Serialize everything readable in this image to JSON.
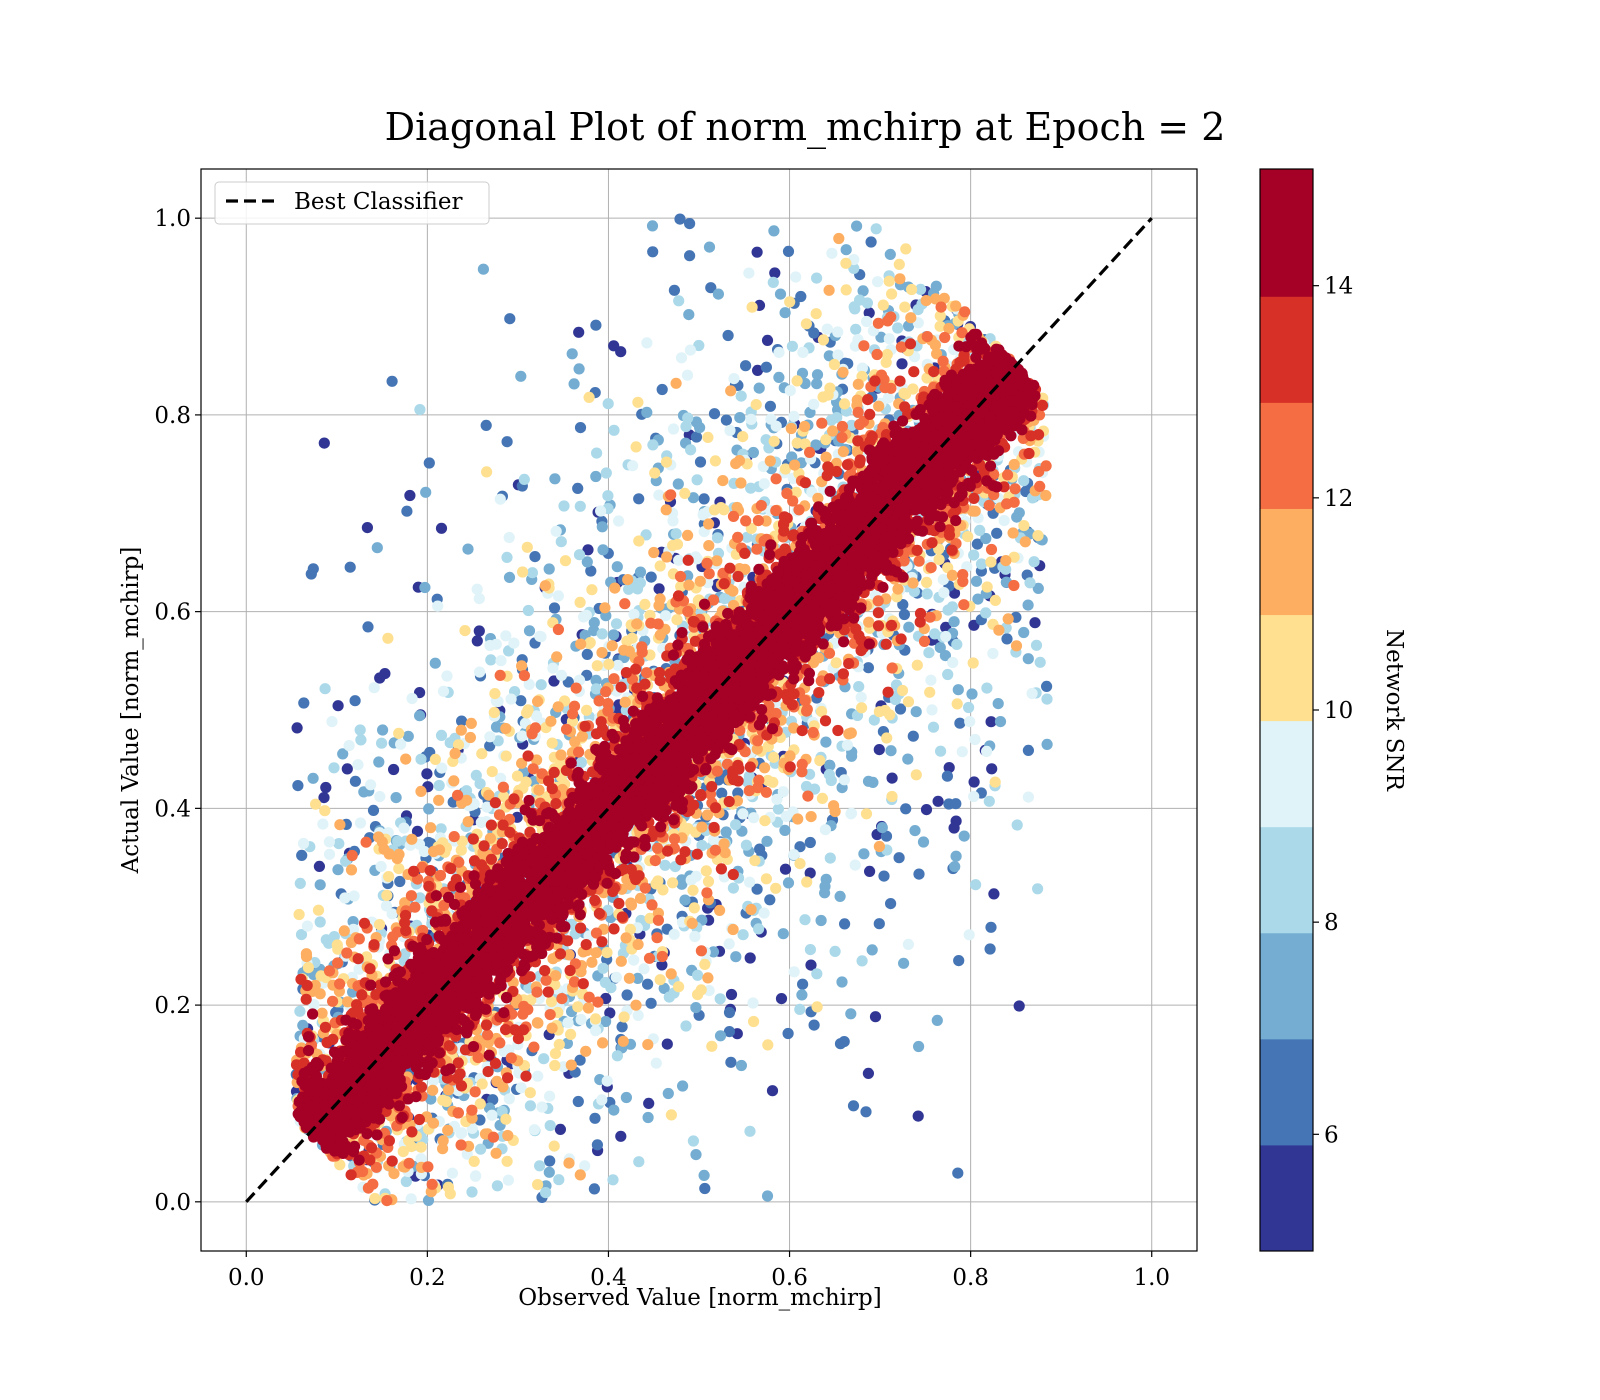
{
  "chart_data": {
    "type": "scatter",
    "title": "Diagonal Plot of norm_mchirp at Epoch = 2",
    "xlabel": "Observed Value [norm_mchirp]",
    "ylabel": "Actual Value [norm_mchirp]",
    "xlim": [
      -0.05,
      1.05
    ],
    "ylim": [
      -0.05,
      1.05
    ],
    "xticks": [
      "0.0",
      "0.2",
      "0.4",
      "0.6",
      "0.8",
      "1.0"
    ],
    "yticks": [
      "0.0",
      "0.2",
      "0.4",
      "0.6",
      "0.8",
      "1.0"
    ],
    "grid": true,
    "legend": {
      "placement": "upper-left",
      "entries": [
        "Best Classifier"
      ]
    },
    "reference_line": {
      "name": "Best Classifier",
      "style": "dashed",
      "color": "#000000",
      "x": [
        0,
        1
      ],
      "y": [
        0,
        1
      ]
    },
    "point_count_estimate": 12000,
    "point_cloud": {
      "description_of_spread": "points concentrated along diagonal, x range about 0.06 to 0.88, y range about 0.0 to 1.0",
      "x_range": [
        0.06,
        0.88
      ],
      "y_range": [
        0.0,
        1.0
      ]
    },
    "colorbar": {
      "label": "Network SNR",
      "range": [
        4.9,
        15.1
      ],
      "ticks": [
        "6",
        "8",
        "10",
        "12",
        "14"
      ],
      "levels": [
        4.9,
        5.9,
        6.9,
        7.9,
        8.9,
        9.9,
        10.9,
        11.9,
        12.9,
        13.9,
        15.1
      ],
      "colors": [
        "#313695",
        "#4575b4",
        "#74add1",
        "#abd9e9",
        "#e0f3f8",
        "#fee090",
        "#fdae61",
        "#f46d43",
        "#d73027",
        "#a50026"
      ]
    }
  }
}
